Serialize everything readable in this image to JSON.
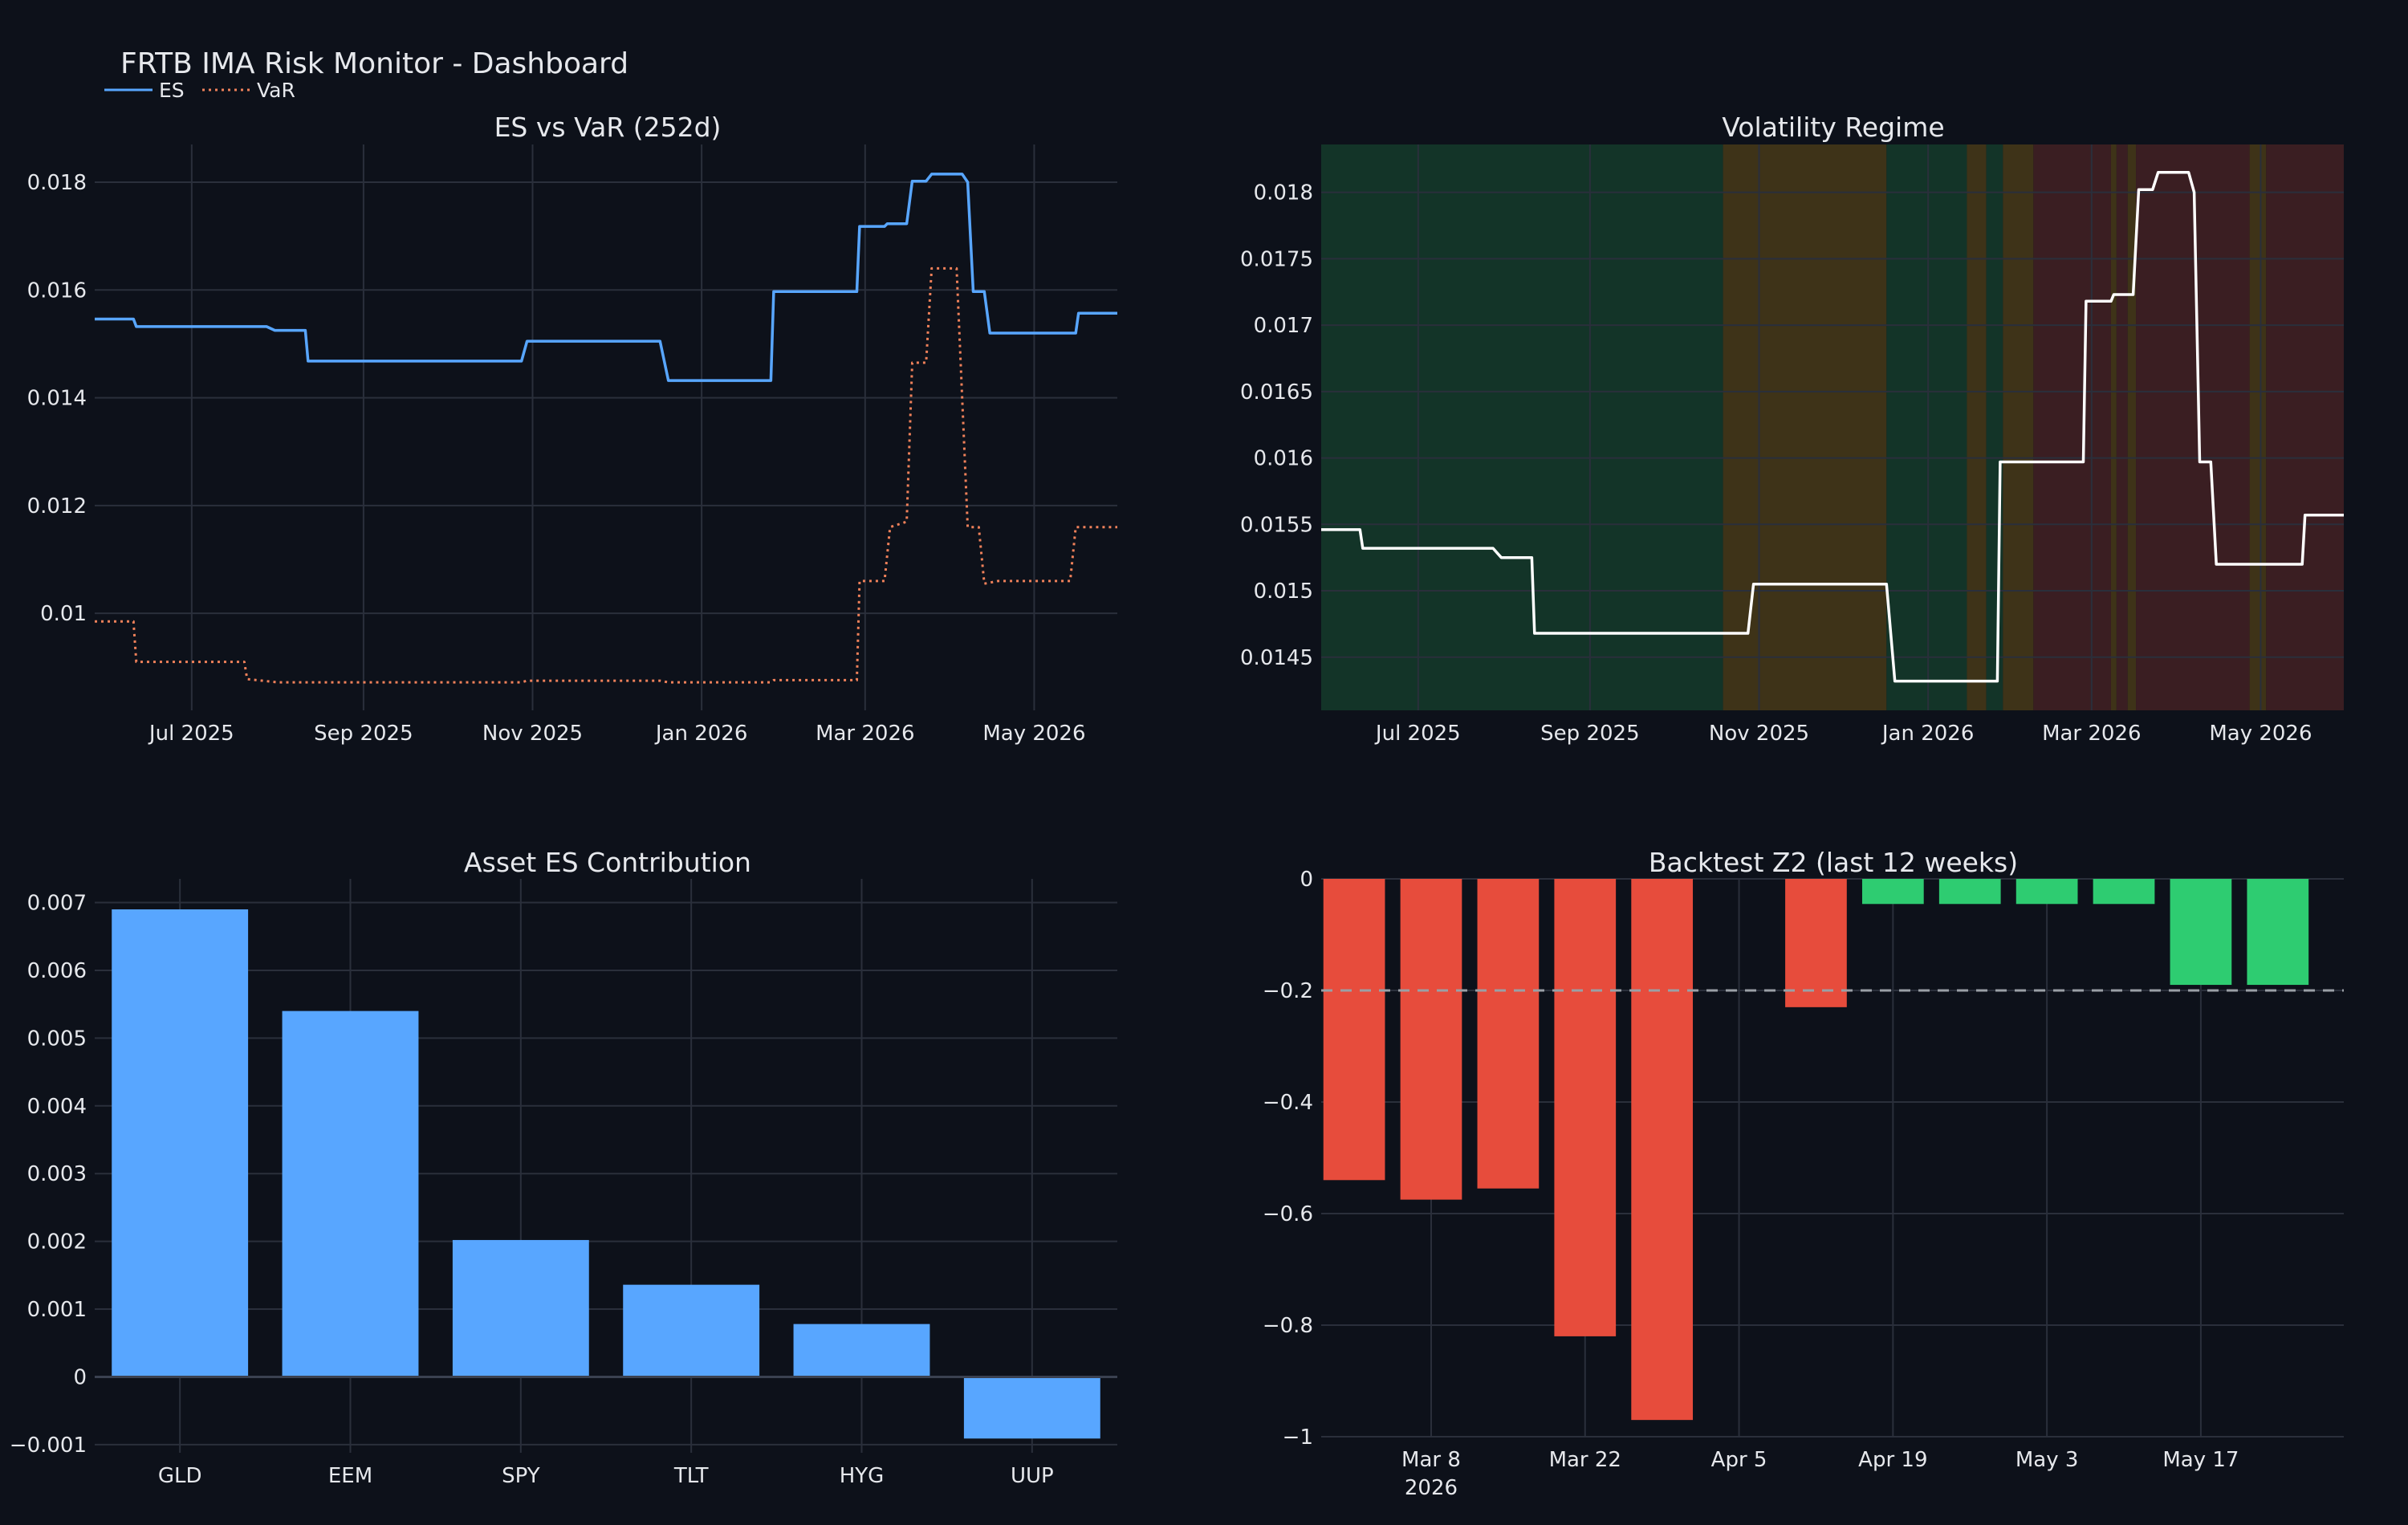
{
  "dashboard_title": "FRTB IMA Risk Monitor - Dashboard",
  "legend": {
    "es": "ES",
    "var": "VaR"
  },
  "colors": {
    "background": "#0d111a",
    "es": "#58a6ff",
    "var": "#f0815a",
    "regime_line": "#ffffff",
    "bar": "#58a6ff",
    "bar_red": "#e74c3c",
    "bar_green": "#2ecc71",
    "threshold": "#9aa0a6",
    "regime_low": "#133428",
    "regime_mid": "#3e3318",
    "regime_high": "#3a1e22"
  },
  "chart_data": [
    {
      "type": "line",
      "title": "ES vs VaR (252d)",
      "x_range": [
        "2025-05-27",
        "2026-05-31"
      ],
      "ylim": [
        0.0082,
        0.0187
      ],
      "x_ticks": [
        {
          "date": "2025-07-01",
          "label": "Jul 2025"
        },
        {
          "date": "2025-09-01",
          "label": "Sep 2025"
        },
        {
          "date": "2025-11-01",
          "label": "Nov 2025"
        },
        {
          "date": "2026-01-01",
          "label": "Jan 2026"
        },
        {
          "date": "2026-03-01",
          "label": "Mar 2026"
        },
        {
          "date": "2026-05-01",
          "label": "May 2026"
        }
      ],
      "y_ticks": [
        {
          "value": 0.01,
          "label": "0.01"
        },
        {
          "value": 0.012,
          "label": "0.012"
        },
        {
          "value": 0.014,
          "label": "0.014"
        },
        {
          "value": 0.016,
          "label": "0.016"
        },
        {
          "value": 0.018,
          "label": "0.018"
        }
      ],
      "series": [
        {
          "name": "ES",
          "style": "solid",
          "points": [
            [
              "2025-05-27",
              0.01546
            ],
            [
              "2025-06-10",
              0.01546
            ],
            [
              "2025-06-11",
              0.01532
            ],
            [
              "2025-07-28",
              0.01532
            ],
            [
              "2025-07-31",
              0.01525
            ],
            [
              "2025-08-11",
              0.01525
            ],
            [
              "2025-08-12",
              0.01468
            ],
            [
              "2025-10-28",
              0.01468
            ],
            [
              "2025-10-30",
              0.01505
            ],
            [
              "2025-12-17",
              0.01505
            ],
            [
              "2025-12-20",
              0.01432
            ],
            [
              "2026-01-26",
              0.01432
            ],
            [
              "2026-01-27",
              0.01597
            ],
            [
              "2026-02-26",
              0.01597
            ],
            [
              "2026-02-27",
              0.01718
            ],
            [
              "2026-03-08",
              0.01718
            ],
            [
              "2026-03-09",
              0.01723
            ],
            [
              "2026-03-16",
              0.01723
            ],
            [
              "2026-03-18",
              0.01802
            ],
            [
              "2026-03-23",
              0.01802
            ],
            [
              "2026-03-25",
              0.01815
            ],
            [
              "2026-04-05",
              0.01815
            ],
            [
              "2026-04-07",
              0.018
            ],
            [
              "2026-04-09",
              0.01597
            ],
            [
              "2026-04-13",
              0.01597
            ],
            [
              "2026-04-15",
              0.0152
            ],
            [
              "2026-05-16",
              0.0152
            ],
            [
              "2026-05-17",
              0.01557
            ],
            [
              "2026-05-31",
              0.01557
            ]
          ]
        },
        {
          "name": "VaR",
          "style": "dotted",
          "points": [
            [
              "2025-05-27",
              0.00985
            ],
            [
              "2025-06-10",
              0.00985
            ],
            [
              "2025-06-11",
              0.0091
            ],
            [
              "2025-07-20",
              0.0091
            ],
            [
              "2025-07-21",
              0.00878
            ],
            [
              "2025-08-01",
              0.00872
            ],
            [
              "2025-10-28",
              0.00872
            ],
            [
              "2025-10-30",
              0.00875
            ],
            [
              "2025-12-17",
              0.00875
            ],
            [
              "2025-12-20",
              0.00872
            ],
            [
              "2026-01-26",
              0.00872
            ],
            [
              "2026-01-27",
              0.00876
            ],
            [
              "2026-02-26",
              0.00876
            ],
            [
              "2026-02-27",
              0.0106
            ],
            [
              "2026-03-08",
              0.0106
            ],
            [
              "2026-03-10",
              0.0116
            ],
            [
              "2026-03-16",
              0.0117
            ],
            [
              "2026-03-18",
              0.01465
            ],
            [
              "2026-03-23",
              0.01465
            ],
            [
              "2026-03-25",
              0.0164
            ],
            [
              "2026-04-03",
              0.0164
            ],
            [
              "2026-04-07",
              0.0116
            ],
            [
              "2026-04-11",
              0.0116
            ],
            [
              "2026-04-13",
              0.01055
            ],
            [
              "2026-04-18",
              0.0106
            ],
            [
              "2026-05-14",
              0.0106
            ],
            [
              "2026-05-16",
              0.0116
            ],
            [
              "2026-05-31",
              0.0116
            ]
          ]
        }
      ]
    },
    {
      "type": "line",
      "title": "Volatility Regime",
      "x_range": [
        "2025-05-27",
        "2026-05-31"
      ],
      "ylim": [
        0.0141,
        0.01836
      ],
      "x_ticks": [
        {
          "date": "2025-07-01",
          "label": "Jul 2025"
        },
        {
          "date": "2025-09-01",
          "label": "Sep 2025"
        },
        {
          "date": "2025-11-01",
          "label": "Nov 2025"
        },
        {
          "date": "2026-01-01",
          "label": "Jan 2026"
        },
        {
          "date": "2026-03-01",
          "label": "Mar 2026"
        },
        {
          "date": "2026-05-01",
          "label": "May 2026"
        }
      ],
      "y_ticks": [
        {
          "value": 0.0145,
          "label": "0.0145"
        },
        {
          "value": 0.015,
          "label": "0.015"
        },
        {
          "value": 0.0155,
          "label": "0.0155"
        },
        {
          "value": 0.016,
          "label": "0.016"
        },
        {
          "value": 0.0165,
          "label": "0.0165"
        },
        {
          "value": 0.017,
          "label": "0.017"
        },
        {
          "value": 0.0175,
          "label": "0.0175"
        },
        {
          "value": 0.018,
          "label": "0.018"
        }
      ],
      "regimes": [
        {
          "start": "2025-05-27",
          "end": "2025-10-19",
          "level": "low"
        },
        {
          "start": "2025-10-19",
          "end": "2025-12-17",
          "level": "mid"
        },
        {
          "start": "2025-12-17",
          "end": "2026-01-15",
          "level": "low"
        },
        {
          "start": "2026-01-15",
          "end": "2026-01-22",
          "level": "mid"
        },
        {
          "start": "2026-01-22",
          "end": "2026-01-28",
          "level": "low"
        },
        {
          "start": "2026-01-28",
          "end": "2026-02-08",
          "level": "mid"
        },
        {
          "start": "2026-02-08",
          "end": "2026-03-08",
          "level": "high"
        },
        {
          "start": "2026-03-08",
          "end": "2026-03-10",
          "level": "mid"
        },
        {
          "start": "2026-03-10",
          "end": "2026-03-14",
          "level": "high"
        },
        {
          "start": "2026-03-14",
          "end": "2026-03-17",
          "level": "mid"
        },
        {
          "start": "2026-03-17",
          "end": "2026-04-27",
          "level": "high"
        },
        {
          "start": "2026-04-27",
          "end": "2026-05-03",
          "level": "mid"
        },
        {
          "start": "2026-05-03",
          "end": "2026-05-31",
          "level": "high"
        }
      ],
      "series": [
        {
          "name": "ES",
          "style": "solid",
          "points": [
            [
              "2025-05-27",
              0.01546
            ],
            [
              "2025-06-10",
              0.01546
            ],
            [
              "2025-06-11",
              0.01532
            ],
            [
              "2025-07-28",
              0.01532
            ],
            [
              "2025-07-31",
              0.01525
            ],
            [
              "2025-08-11",
              0.01525
            ],
            [
              "2025-08-12",
              0.01468
            ],
            [
              "2025-10-28",
              0.01468
            ],
            [
              "2025-10-30",
              0.01505
            ],
            [
              "2025-12-17",
              0.01505
            ],
            [
              "2025-12-20",
              0.01432
            ],
            [
              "2026-01-26",
              0.01432
            ],
            [
              "2026-01-27",
              0.01597
            ],
            [
              "2026-02-26",
              0.01597
            ],
            [
              "2026-02-27",
              0.01718
            ],
            [
              "2026-03-08",
              0.01718
            ],
            [
              "2026-03-09",
              0.01723
            ],
            [
              "2026-03-16",
              0.01723
            ],
            [
              "2026-03-18",
              0.01802
            ],
            [
              "2026-03-23",
              0.01802
            ],
            [
              "2026-03-25",
              0.01815
            ],
            [
              "2026-04-05",
              0.01815
            ],
            [
              "2026-04-07",
              0.018
            ],
            [
              "2026-04-09",
              0.01597
            ],
            [
              "2026-04-13",
              0.01597
            ],
            [
              "2026-04-15",
              0.0152
            ],
            [
              "2026-05-16",
              0.0152
            ],
            [
              "2026-05-17",
              0.01557
            ],
            [
              "2026-05-31",
              0.01557
            ]
          ]
        }
      ]
    },
    {
      "type": "bar",
      "title": "Asset ES Contribution",
      "categories": [
        "GLD",
        "EEM",
        "SPY",
        "TLT",
        "HYG",
        "UUP"
      ],
      "values": [
        0.0069,
        0.0054,
        0.00202,
        0.00136,
        0.00078,
        -0.00091
      ],
      "ylim": [
        -0.00112,
        0.00735
      ],
      "y_ticks": [
        {
          "value": -0.001,
          "label": "−0.001"
        },
        {
          "value": 0,
          "label": "0"
        },
        {
          "value": 0.001,
          "label": "0.001"
        },
        {
          "value": 0.002,
          "label": "0.002"
        },
        {
          "value": 0.003,
          "label": "0.003"
        },
        {
          "value": 0.004,
          "label": "0.004"
        },
        {
          "value": 0.005,
          "label": "0.005"
        },
        {
          "value": 0.006,
          "label": "0.006"
        },
        {
          "value": 0.007,
          "label": "0.007"
        }
      ]
    },
    {
      "type": "bar",
      "title": "Backtest Z2 (last 12 weeks)",
      "x_range": [
        "2026-02-26",
        "2026-05-30"
      ],
      "threshold": -0.2,
      "bars": [
        {
          "date": "2026-03-01",
          "value": -0.54
        },
        {
          "date": "2026-03-08",
          "value": -0.575
        },
        {
          "date": "2026-03-15",
          "value": -0.555
        },
        {
          "date": "2026-03-22",
          "value": -0.82
        },
        {
          "date": "2026-03-29",
          "value": -0.97
        },
        {
          "date": "2026-04-12",
          "value": -0.23
        },
        {
          "date": "2026-04-19",
          "value": -0.045
        },
        {
          "date": "2026-04-26",
          "value": -0.045
        },
        {
          "date": "2026-05-03",
          "value": -0.045
        },
        {
          "date": "2026-05-10",
          "value": -0.045
        },
        {
          "date": "2026-05-17",
          "value": -0.19
        },
        {
          "date": "2026-05-24",
          "value": -0.19
        }
      ],
      "ylim": [
        -1.0,
        0.0
      ],
      "x_ticks": [
        {
          "date": "2026-03-08",
          "label": "Mar 8",
          "sublabel": "2026"
        },
        {
          "date": "2026-03-22",
          "label": "Mar 22"
        },
        {
          "date": "2026-04-05",
          "label": "Apr 5"
        },
        {
          "date": "2026-04-19",
          "label": "Apr 19"
        },
        {
          "date": "2026-05-03",
          "label": "May 3"
        },
        {
          "date": "2026-05-17",
          "label": "May 17"
        }
      ],
      "y_ticks": [
        {
          "value": 0,
          "label": "0"
        },
        {
          "value": -0.2,
          "label": "−0.2"
        },
        {
          "value": -0.4,
          "label": "−0.4"
        },
        {
          "value": -0.6,
          "label": "−0.6"
        },
        {
          "value": -0.8,
          "label": "−0.8"
        },
        {
          "value": -1.0,
          "label": "−1"
        }
      ]
    }
  ]
}
